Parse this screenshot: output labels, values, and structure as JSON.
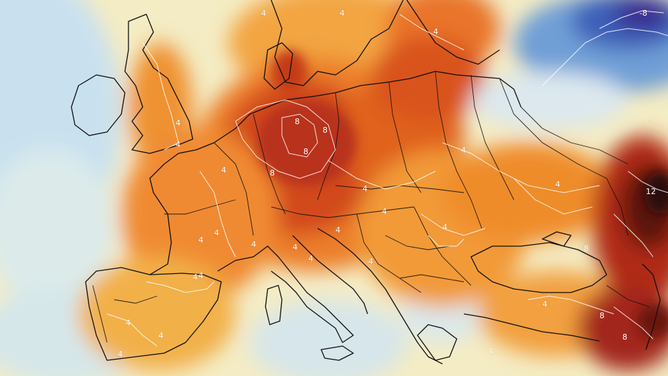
{
  "map": {
    "type": "temperature-anomaly",
    "region": "Europe",
    "contour_labels": [
      {
        "id": "label-neg8-atlantic-ne",
        "text": "-8"
      },
      {
        "id": "label-4-scandinavia-a",
        "text": "4"
      },
      {
        "id": "label-4-scandinavia-b",
        "text": "4"
      },
      {
        "id": "label-4-finland",
        "text": "4"
      },
      {
        "id": "label-8-germany-north",
        "text": "8"
      },
      {
        "id": "label-8-germany-east",
        "text": "8"
      },
      {
        "id": "label-8-germany-center",
        "text": "8"
      },
      {
        "id": "label-8-germany-south",
        "text": "8"
      },
      {
        "id": "label-4-uk",
        "text": "4"
      },
      {
        "id": "label-4-uk-south",
        "text": "4"
      },
      {
        "id": "label-4-france-north",
        "text": "4"
      },
      {
        "id": "label-4-france-center",
        "text": "4"
      },
      {
        "id": "label-4-france-south",
        "text": "4"
      },
      {
        "id": "label-4-france-sw",
        "text": "4"
      },
      {
        "id": "label-4-alps",
        "text": "4"
      },
      {
        "id": "label-4-italy-north",
        "text": "4"
      },
      {
        "id": "label-4-italy-center",
        "text": "4"
      },
      {
        "id": "label-4-balkans",
        "text": "4"
      },
      {
        "id": "label-4-balkans-b",
        "text": "4"
      },
      {
        "id": "label-4-hungary",
        "text": "4"
      },
      {
        "id": "label-4-poland-south",
        "text": "4"
      },
      {
        "id": "label-4-belarus",
        "text": "4"
      },
      {
        "id": "label-4-romania",
        "text": "4"
      },
      {
        "id": "label-4-ukraine",
        "text": "4"
      },
      {
        "id": "label-4-spain-north",
        "text": "4"
      },
      {
        "id": "label-4-spain-center",
        "text": "4"
      },
      {
        "id": "label-4-spain-south",
        "text": "4"
      },
      {
        "id": "label-4-spain-east",
        "text": "4"
      },
      {
        "id": "label-4-turkey",
        "text": "4"
      },
      {
        "id": "label-4-turkey-b",
        "text": "4"
      },
      {
        "id": "label-8-russia-south",
        "text": "8"
      },
      {
        "id": "label-12-russia-east",
        "text": "12"
      },
      {
        "id": "label-8-caucasus",
        "text": "8"
      },
      {
        "id": "label-8-caucasus-b",
        "text": "8"
      }
    ]
  },
  "colors": {
    "cold_deep": "#3a2c8c",
    "cold": "#3d6fc4",
    "cool": "#b9d9ef",
    "neutral": "#f4ecc4",
    "warm_light": "#f7d27a",
    "warm": "#f3a542",
    "hot": "#e86a22",
    "very_hot": "#c83c16",
    "extreme": "#8a1c12",
    "extreme_dark": "#3b0d0a",
    "coastline": "#111111",
    "contour": "#ffffff"
  }
}
